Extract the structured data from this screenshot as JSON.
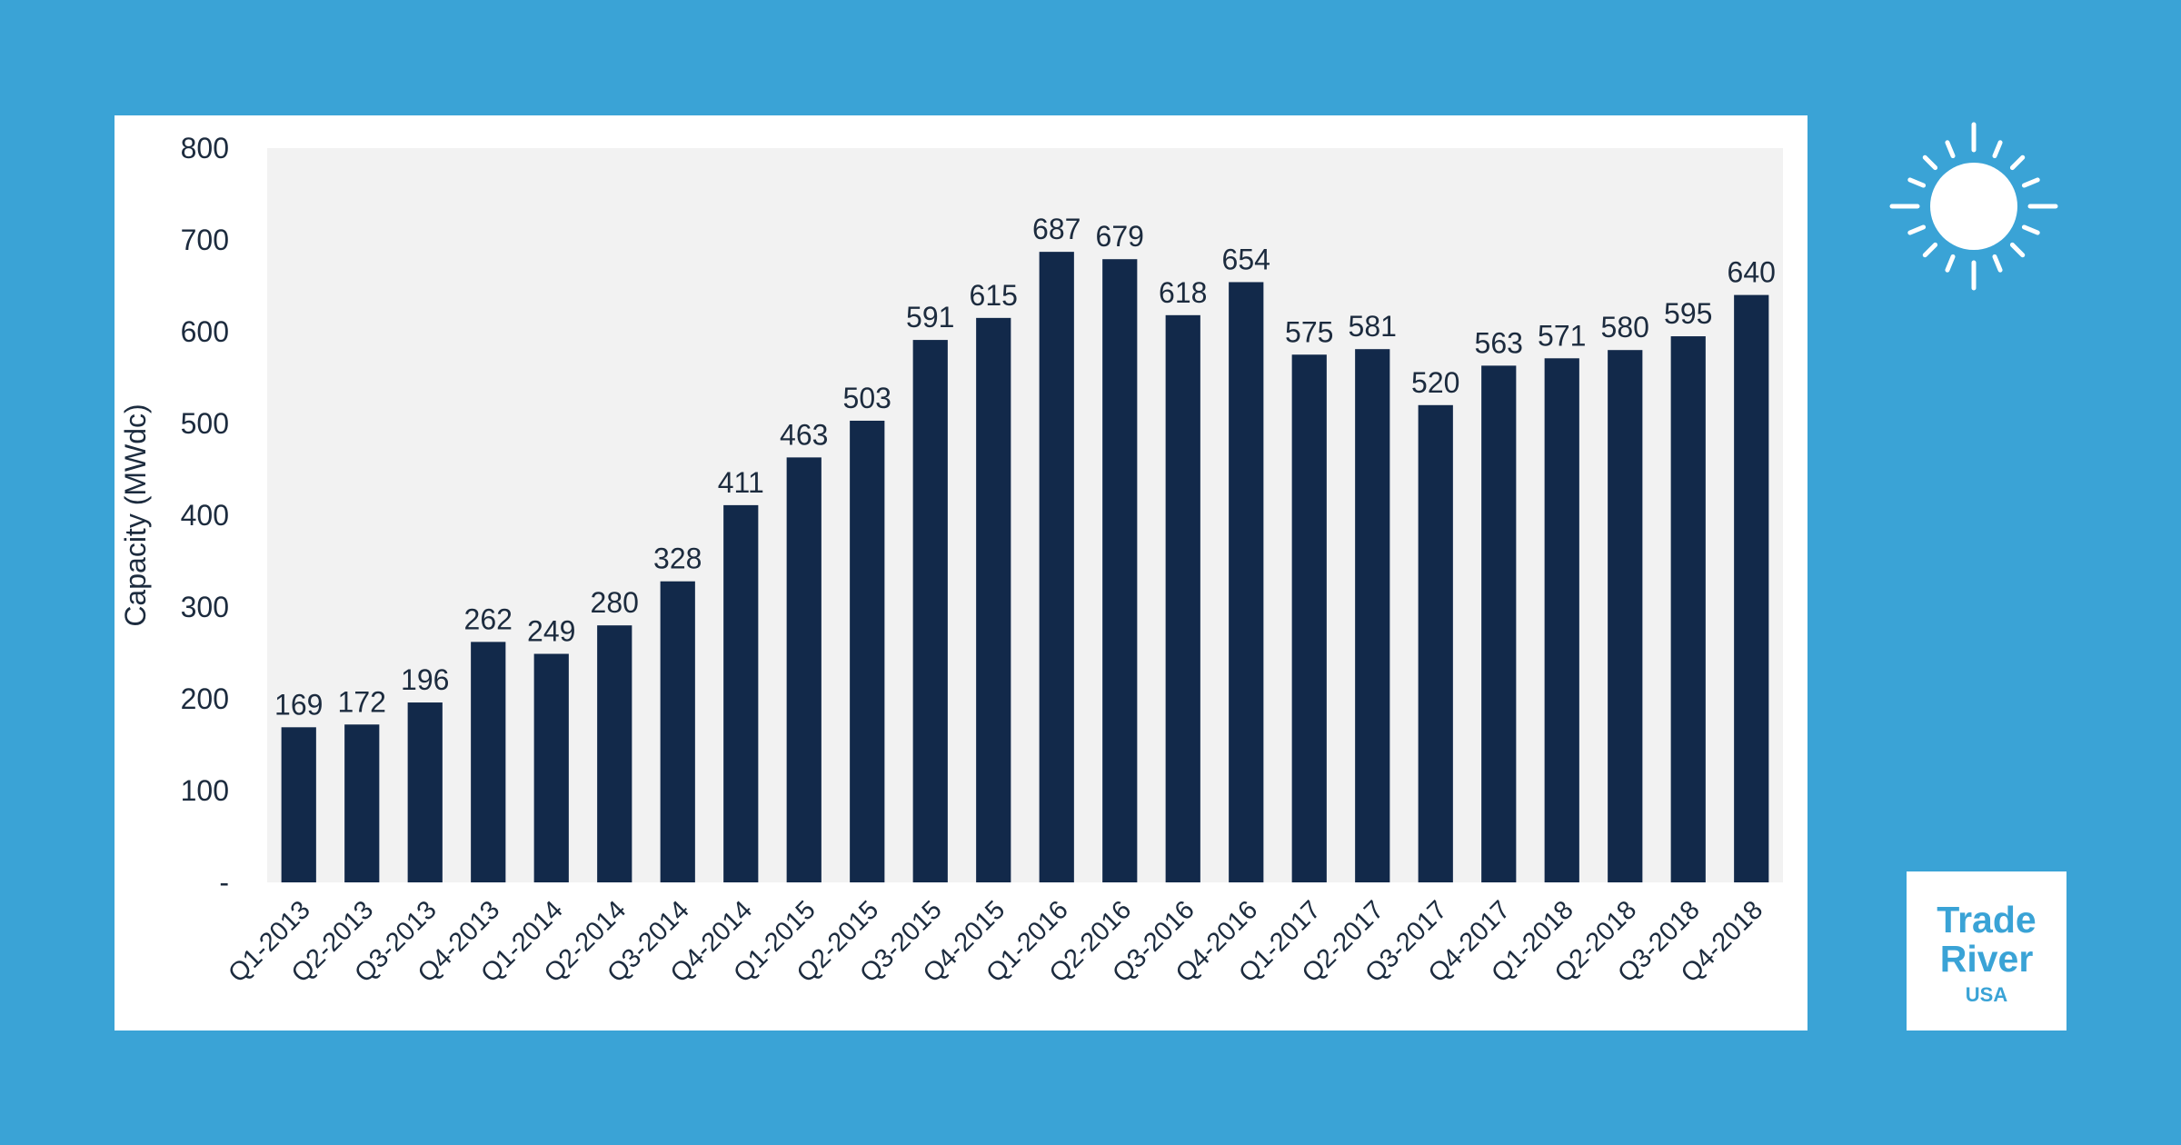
{
  "brand": {
    "line1": "Trade",
    "line2": "River",
    "line3": "USA"
  },
  "colors": {
    "background": "#3aa3d6",
    "plot_area": "#f2f2f2",
    "bar": "#12294a",
    "text": "#1c2b3e",
    "brand": "#3aa3d6"
  },
  "icons": {
    "sun": "sun-icon"
  },
  "chart_data": {
    "type": "bar",
    "ylabel": "Capacity (MWdc)",
    "ylim": [
      0,
      800
    ],
    "yticks": [
      {
        "value": 0,
        "label": "-"
      },
      {
        "value": 100,
        "label": "100"
      },
      {
        "value": 200,
        "label": "200"
      },
      {
        "value": 300,
        "label": "300"
      },
      {
        "value": 400,
        "label": "400"
      },
      {
        "value": 500,
        "label": "500"
      },
      {
        "value": 600,
        "label": "600"
      },
      {
        "value": 700,
        "label": "700"
      },
      {
        "value": 800,
        "label": "800"
      }
    ],
    "categories": [
      "Q1-2013",
      "Q2-2013",
      "Q3-2013",
      "Q4-2013",
      "Q1-2014",
      "Q2-2014",
      "Q3-2014",
      "Q4-2014",
      "Q1-2015",
      "Q2-2015",
      "Q3-2015",
      "Q4-2015",
      "Q1-2016",
      "Q2-2016",
      "Q3-2016",
      "Q4-2016",
      "Q1-2017",
      "Q2-2017",
      "Q3-2017",
      "Q4-2017",
      "Q1-2018",
      "Q2-2018",
      "Q3-2018",
      "Q4-2018"
    ],
    "values": [
      169,
      172,
      196,
      262,
      249,
      280,
      328,
      411,
      463,
      503,
      591,
      615,
      687,
      679,
      618,
      654,
      575,
      581,
      520,
      563,
      571,
      580,
      595,
      640
    ],
    "data_labels": true,
    "grid": false,
    "legend": "none"
  }
}
